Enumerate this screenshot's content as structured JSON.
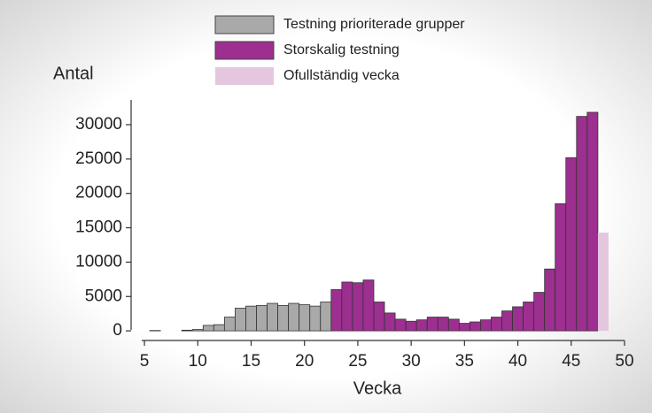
{
  "chart_data": {
    "type": "bar",
    "y_label": "Antal",
    "x_label": "Vecka",
    "x": [
      6,
      7,
      8,
      9,
      10,
      11,
      12,
      13,
      14,
      15,
      16,
      17,
      18,
      19,
      20,
      21,
      22,
      23,
      24,
      25,
      26,
      27,
      28,
      29,
      30,
      31,
      32,
      33,
      34,
      35,
      36,
      37,
      38,
      39,
      40,
      41,
      42,
      43,
      44,
      45,
      46,
      47,
      48
    ],
    "series": [
      {
        "name": "Testning prioriterade grupper",
        "color": "#a9a9a9",
        "values": [
          50,
          0,
          0,
          100,
          200,
          800,
          900,
          2000,
          3300,
          3600,
          3700,
          4000,
          3700,
          4000,
          3800,
          3600,
          4200,
          null,
          null,
          null,
          null,
          null,
          null,
          null,
          null,
          null,
          null,
          null,
          null,
          null,
          null,
          null,
          null,
          null,
          null,
          null,
          null,
          null,
          null,
          null,
          null,
          null,
          null
        ]
      },
      {
        "name": "Storskalig testning",
        "color": "#9c2f8f",
        "values": [
          null,
          null,
          null,
          null,
          null,
          null,
          null,
          null,
          null,
          null,
          null,
          null,
          null,
          null,
          null,
          null,
          null,
          6000,
          7100,
          7000,
          7400,
          4200,
          2600,
          1700,
          1400,
          1600,
          2000,
          2000,
          1700,
          1100,
          1300,
          1600,
          2000,
          2900,
          3500,
          4200,
          5600,
          9000,
          18500,
          25200,
          31200,
          31800,
          null
        ]
      },
      {
        "name": "Ofullständig vecka",
        "color": "#e4c7df",
        "values": [
          null,
          null,
          null,
          null,
          null,
          null,
          null,
          null,
          null,
          null,
          null,
          null,
          null,
          null,
          null,
          null,
          null,
          null,
          null,
          null,
          null,
          null,
          null,
          null,
          null,
          null,
          null,
          null,
          null,
          null,
          null,
          null,
          null,
          null,
          null,
          null,
          null,
          null,
          null,
          null,
          null,
          null,
          14300
        ]
      }
    ],
    "xlim": [
      3.75,
      50
    ],
    "xticks": [
      5,
      10,
      15,
      20,
      25,
      30,
      35,
      40,
      45,
      50
    ],
    "ylim": [
      -1400,
      33600
    ],
    "yticks": [
      0,
      5000,
      10000,
      15000,
      20000,
      25000,
      30000
    ]
  }
}
